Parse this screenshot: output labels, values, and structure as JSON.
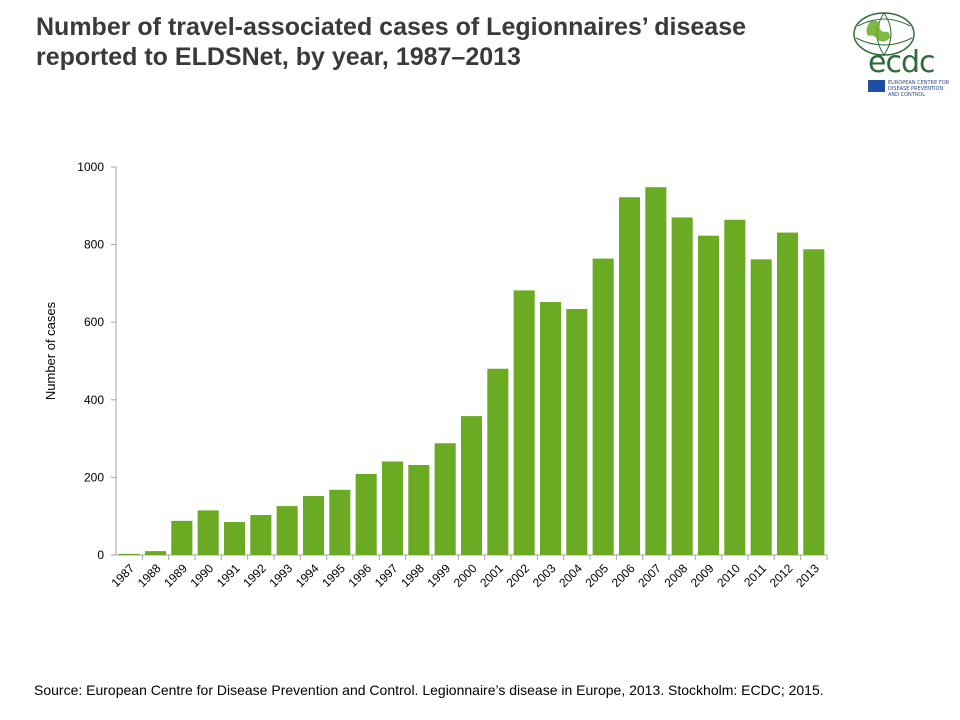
{
  "title_lines": [
    "Number of travel-associated cases of Legionnaires’ disease",
    "reported to ELDSNet, by year, 1987–2013"
  ],
  "logo": {
    "icon": "ecdc-globe-logo",
    "wordmark": "ecdc",
    "org_lines": [
      "EUROPEAN CENTRE FOR",
      "DISEASE PREVENTION",
      "AND CONTROL"
    ]
  },
  "source": "Source: European Centre for Disease Prevention and Control. Legionnaire’s disease in Europe, 2013. Stockholm: ECDC; 2015.",
  "chart_data": {
    "type": "bar",
    "categories": [
      "1987",
      "1988",
      "1989",
      "1990",
      "1991",
      "1992",
      "1993",
      "1994",
      "1995",
      "1996",
      "1997",
      "1998",
      "1999",
      "2000",
      "2001",
      "2002",
      "2003",
      "2004",
      "2005",
      "2006",
      "2007",
      "2008",
      "2009",
      "2010",
      "2011",
      "2012",
      "2013"
    ],
    "values": [
      3,
      10,
      88,
      115,
      85,
      103,
      126,
      152,
      168,
      209,
      241,
      232,
      288,
      358,
      480,
      682,
      652,
      634,
      764,
      922,
      948,
      870,
      823,
      864,
      762,
      831,
      788
    ],
    "ylabel": "Number of cases",
    "xlabel": "",
    "ylim": [
      0,
      1000
    ],
    "yticks": [
      0,
      200,
      400,
      600,
      800,
      1000
    ],
    "bar_color": "#6aab23",
    "grid": false
  }
}
